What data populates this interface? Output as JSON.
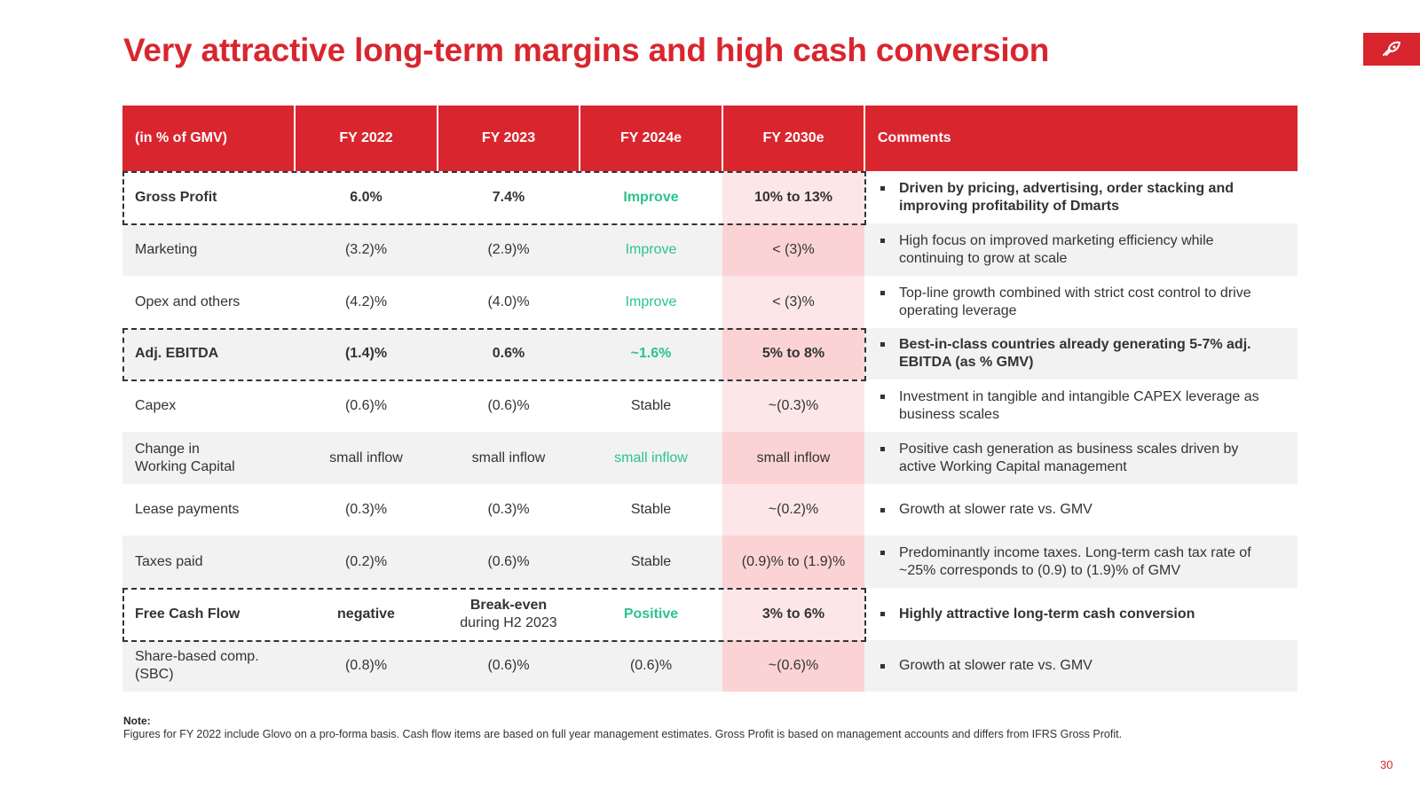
{
  "title": "Very attractive long-term margins and high cash conversion",
  "brand": {
    "accent_color": "#d9262e",
    "positive_color": "#2bc48a",
    "logo_icon": "brand-logo-icon"
  },
  "table": {
    "headers": [
      "(in % of GMV)",
      "FY 2022",
      "FY 2023",
      "FY 2024e",
      "FY 2030e",
      "Comments"
    ],
    "rows": [
      {
        "label": "Gross Profit",
        "fy2022": "6.0%",
        "fy2023": "7.4%",
        "fy2024e": "Improve",
        "fy2030e": "10% to 13%",
        "comment": "Driven by pricing, advertising, order stacking and improving profitability of Dmarts"
      },
      {
        "label": "Marketing",
        "fy2022": "(3.2)%",
        "fy2023": "(2.9)%",
        "fy2024e": "Improve",
        "fy2030e": "< (3)%",
        "comment": "High focus on improved marketing efficiency while continuing to grow at scale"
      },
      {
        "label": "Opex and others",
        "fy2022": "(4.2)%",
        "fy2023": "(4.0)%",
        "fy2024e": "Improve",
        "fy2030e": "< (3)%",
        "comment": "Top-line growth combined with strict cost control to drive operating leverage"
      },
      {
        "label": "Adj. EBITDA",
        "fy2022": "(1.4)%",
        "fy2023": "0.6%",
        "fy2024e": "~1.6%",
        "fy2030e": "5% to 8%",
        "comment": "Best-in-class countries already generating 5-7% adj. EBITDA (as % GMV)"
      },
      {
        "label": "Capex",
        "fy2022": "(0.6)%",
        "fy2023": "(0.6)%",
        "fy2024e": "Stable",
        "fy2030e": "~(0.3)%",
        "comment": "Investment in tangible and intangible CAPEX leverage as business scales"
      },
      {
        "label_line1": "Change in",
        "label_line2": "Working Capital",
        "fy2022": "small inflow",
        "fy2023": "small inflow",
        "fy2024e": "small inflow",
        "fy2030e": "small inflow",
        "comment": "Positive cash generation as business scales driven by active Working Capital management"
      },
      {
        "label": "Lease payments",
        "fy2022": "(0.3)%",
        "fy2023": "(0.3)%",
        "fy2024e": "Stable",
        "fy2030e": "~(0.2)%",
        "comment": "Growth at slower rate vs. GMV"
      },
      {
        "label": "Taxes paid",
        "fy2022": "(0.2)%",
        "fy2023": "(0.6)%",
        "fy2024e": "Stable",
        "fy2030e": "(0.9)% to (1.9)%",
        "comment": "Predominantly income taxes. Long-term cash tax rate of ~25% corresponds to (0.9) to (1.9)%  of GMV"
      },
      {
        "label": "Free Cash Flow",
        "fy2022": "negative",
        "fy2023_line1": "Break-even",
        "fy2023_line2": "during H2 2023",
        "fy2024e": "Positive",
        "fy2030e": "3% to 6%",
        "comment": "Highly attractive long-term cash conversion"
      },
      {
        "label_line1": "Share-based comp.",
        "label_line2": "(SBC)",
        "fy2022": "(0.8)%",
        "fy2023": "(0.6)%",
        "fy2024e": "(0.6)%",
        "fy2030e": "~(0.6)%",
        "comment": "Growth at slower rate vs. GMV"
      }
    ]
  },
  "note": {
    "label": "Note:",
    "text": "Figures for FY 2022 include Glovo on a pro-forma basis. Cash flow items are based on full year management estimates. Gross Profit is based on management accounts and differs from IFRS Gross Profit."
  },
  "page_number": "30"
}
